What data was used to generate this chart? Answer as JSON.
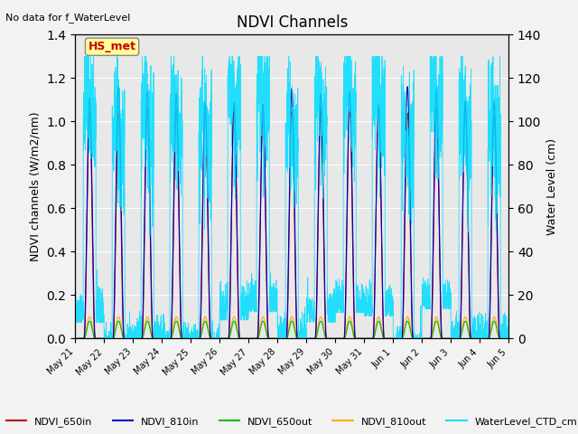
{
  "title": "NDVI Channels",
  "subtitle": "No data for f_WaterLevel",
  "ylabel_left": "NDVI channels (W/m2/nm)",
  "ylabel_right": "Water Level (cm)",
  "ylim_left": [
    0.0,
    1.4
  ],
  "ylim_right": [
    0,
    140
  ],
  "annotation": "HS_met",
  "x_tick_labels": [
    "May 21",
    "May 22",
    "May 23",
    "May 24",
    "May 25",
    "May 26",
    "May 27",
    "May 28",
    "May 29",
    "May 30",
    "May 31",
    "Jun 1",
    "Jun 2",
    "Jun 3",
    "Jun 4",
    "Jun 5"
  ],
  "legend_entries": [
    {
      "label": "NDVI_650in",
      "color": "#bb0000"
    },
    {
      "label": "NDVI_810in",
      "color": "#0000bb"
    },
    {
      "label": "NDVI_650out",
      "color": "#00bb00"
    },
    {
      "label": "NDVI_810out",
      "color": "#ffaa00"
    },
    {
      "label": "WaterLevel_CTD_cm",
      "color": "#00ddff"
    }
  ],
  "background_color": "#e8e8e8",
  "fig_bg_color": "#f2f2f2",
  "grid_color": "#ffffff"
}
